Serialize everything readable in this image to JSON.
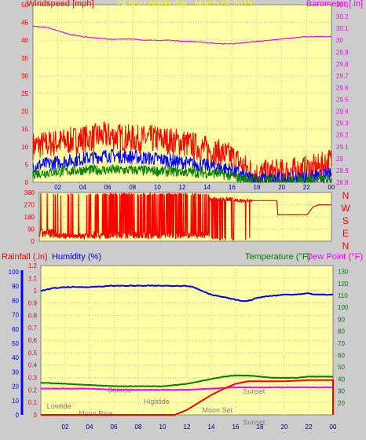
{
  "title": "24 hour graph day - March 02 2019",
  "colors": {
    "background": "#cccccc",
    "plot_bg": "#ffffa8",
    "wind": "#ff0000",
    "gust_avg": "#0000ff",
    "wind_low": "#008000",
    "barometer": "#ff00ff",
    "direction": "#ff0000",
    "humidity": "#0000ff",
    "temperature": "#008000",
    "dewpoint": "#ff00ff",
    "rain": "#ff0000",
    "title": "#ffff00",
    "event_text": "#808080"
  },
  "x_ticks": [
    "02",
    "04",
    "06",
    "08",
    "10",
    "12",
    "14",
    "16",
    "18",
    "20",
    "22",
    "00"
  ],
  "chart_data": [
    {
      "id": "wind_baro",
      "type": "line",
      "title": "24 hour graph day - March 02 2019",
      "left_axis_label": "Windspeed [mph]",
      "right_axis_label": "Barometer [.in]",
      "ylim_left": [
        0,
        50
      ],
      "ylim_right": [
        28.8,
        30.3
      ],
      "left_ticks": [
        "0",
        "5",
        "10",
        "15",
        "20",
        "25",
        "30",
        "35",
        "40",
        "45",
        "50"
      ],
      "right_ticks": [
        "28.8",
        "28.9",
        "29",
        "29.1",
        "29.2",
        "29.3",
        "29.4",
        "29.5",
        "29.6",
        "29.7",
        "29.8",
        "29.9",
        "30",
        "30.1",
        "30.2",
        "30.3"
      ],
      "xlim_hours": [
        0,
        24
      ],
      "series": [
        {
          "kind": "wind_gust",
          "color": "#ff0000",
          "anchors": [
            [
              0,
              9
            ],
            [
              2,
              10
            ],
            [
              4,
              11
            ],
            [
              6,
              12
            ],
            [
              8,
              11
            ],
            [
              10,
              11
            ],
            [
              12,
              10
            ],
            [
              14,
              8
            ],
            [
              16,
              6
            ],
            [
              17,
              3
            ],
            [
              18,
              1
            ],
            [
              21,
              2
            ],
            [
              23,
              3
            ],
            [
              24,
              5
            ]
          ],
          "noise": 4
        },
        {
          "kind": "wind_avg",
          "color": "#0000ff",
          "anchors": [
            [
              0,
              4
            ],
            [
              2,
              5
            ],
            [
              4,
              6
            ],
            [
              6,
              7
            ],
            [
              8,
              6.5
            ],
            [
              10,
              6
            ],
            [
              12,
              5
            ],
            [
              14,
              4
            ],
            [
              16,
              3
            ],
            [
              17,
              1
            ],
            [
              18,
              0.3
            ],
            [
              21,
              0.5
            ],
            [
              22.5,
              1
            ],
            [
              24,
              1.5
            ]
          ],
          "noise": 2
        },
        {
          "kind": "wind_low",
          "color": "#008000",
          "anchors": [
            [
              0,
              2
            ],
            [
              4,
              3
            ],
            [
              8,
              3
            ],
            [
              12,
              2.5
            ],
            [
              15,
              2
            ],
            [
              17,
              0.5
            ],
            [
              18,
              0
            ],
            [
              24,
              0.3
            ]
          ],
          "noise": 1.5
        },
        {
          "kind": "barometer",
          "color": "#ff00ff",
          "values": [
            [
              0,
              30.12
            ],
            [
              1,
              30.11
            ],
            [
              2,
              30.08
            ],
            [
              3,
              30.05
            ],
            [
              4,
              30.03
            ],
            [
              5,
              30.02
            ],
            [
              6,
              30.01
            ],
            [
              7,
              30.01
            ],
            [
              8,
              30.01
            ],
            [
              9,
              30.0
            ],
            [
              10,
              30.0
            ],
            [
              11,
              30.0
            ],
            [
              12,
              29.99
            ],
            [
              13,
              29.99
            ],
            [
              14,
              29.98
            ],
            [
              15,
              29.97
            ],
            [
              16,
              29.97
            ],
            [
              17,
              29.98
            ],
            [
              18,
              29.99
            ],
            [
              19,
              30.0
            ],
            [
              20,
              30.01
            ],
            [
              21,
              30.02
            ],
            [
              22,
              30.03
            ],
            [
              23,
              30.03
            ],
            [
              24,
              30.03
            ]
          ]
        }
      ]
    },
    {
      "id": "direction",
      "type": "line",
      "ylim": [
        0,
        360
      ],
      "left_ticks": [
        "0",
        "90",
        "180",
        "270",
        "360"
      ],
      "right_labels": [
        "N",
        "W",
        "S",
        "E",
        "N"
      ],
      "series": [
        {
          "kind": "direction",
          "color": "#ff0000",
          "segments": [
            {
              "from": 0,
              "to": 1.5,
              "base": 60,
              "noise": 35,
              "spikes": 0.04
            },
            {
              "from": 1.5,
              "to": 4,
              "base": 40,
              "noise": 20,
              "spikes": 0.06
            },
            {
              "from": 4,
              "to": 14,
              "base": 45,
              "noise": 25,
              "spikes": 0.35
            },
            {
              "from": 14,
              "to": 16,
              "base": 310,
              "noise": 15,
              "spikes": 0.25
            },
            {
              "from": 16,
              "to": 17.5,
              "base": 300,
              "noise": 10,
              "spikes": 0.02
            }
          ],
          "tail": [
            [
              17.5,
              300
            ],
            [
              19.5,
              300
            ],
            [
              19.6,
              195
            ],
            [
              22,
              195
            ],
            [
              22.5,
              255
            ],
            [
              23,
              270
            ],
            [
              24,
              268
            ]
          ]
        }
      ]
    },
    {
      "id": "hum_temp_rain",
      "type": "line",
      "rain_label": "Rainfall (.in)",
      "humidity_label": "Humidity (%)",
      "temperature_label": "Temperature (°F)",
      "dewpoint_label": "Dew Point (°F)",
      "ylim_rain": [
        0,
        1.2
      ],
      "ylim_humidity": [
        0,
        120
      ],
      "ylim_temp": [
        10,
        135
      ],
      "rain_ticks": [
        "0",
        "0.1",
        "0.2",
        "0.3",
        "0.4",
        "0.5",
        "0.6",
        "0.7",
        "0.8",
        "0.9",
        "1",
        "1.1",
        "1.2"
      ],
      "humidity_ticks": [
        "0",
        "10",
        "20",
        "30",
        "40",
        "50",
        "60",
        "70",
        "80",
        "90",
        "100"
      ],
      "temp_ticks": [
        "20",
        "30",
        "40",
        "50",
        "60",
        "70",
        "80",
        "90",
        "100",
        "110",
        "120",
        "130"
      ],
      "series": [
        {
          "name": "Humidity (%)",
          "kind": "humidity",
          "color": "#0000ff",
          "values": [
            [
              0,
              98
            ],
            [
              1,
              100
            ],
            [
              2,
              101
            ],
            [
              4,
              101
            ],
            [
              6,
              102
            ],
            [
              8,
              102
            ],
            [
              10,
              102
            ],
            [
              12,
              102
            ],
            [
              12.5,
              101
            ],
            [
              13,
              99
            ],
            [
              13.5,
              97
            ],
            [
              14,
              95
            ],
            [
              15,
              93
            ],
            [
              16,
              91
            ],
            [
              16.5,
              90
            ],
            [
              17,
              90
            ],
            [
              18,
              93
            ],
            [
              19,
              94
            ],
            [
              20,
              95
            ],
            [
              21,
              95
            ],
            [
              22,
              96
            ],
            [
              22.5,
              95
            ],
            [
              24,
              95
            ]
          ]
        },
        {
          "name": "Temperature (°F)",
          "kind": "temperature",
          "color": "#008000",
          "values": [
            [
              0,
              37
            ],
            [
              2,
              36
            ],
            [
              4,
              35
            ],
            [
              6,
              34
            ],
            [
              8,
              34
            ],
            [
              10,
              34
            ],
            [
              11,
              35
            ],
            [
              12,
              36
            ],
            [
              13,
              38
            ],
            [
              14,
              40
            ],
            [
              15,
              42
            ],
            [
              16,
              43
            ],
            [
              17,
              43
            ],
            [
              18,
              42
            ],
            [
              19,
              41
            ],
            [
              20,
              41
            ],
            [
              21,
              41
            ],
            [
              22,
              42
            ],
            [
              23,
              42
            ],
            [
              24,
              42
            ]
          ]
        },
        {
          "name": "Dew Point (°F)",
          "kind": "dewpoint",
          "color": "#ff00ff",
          "values": [
            [
              0,
              32
            ],
            [
              2,
              32
            ],
            [
              4,
              32
            ],
            [
              6,
              31
            ],
            [
              8,
              31
            ],
            [
              10,
              31
            ],
            [
              12,
              31
            ],
            [
              14,
              32
            ],
            [
              16,
              33
            ],
            [
              18,
              33
            ],
            [
              20,
              33
            ],
            [
              22,
              33
            ],
            [
              24,
              33
            ]
          ]
        },
        {
          "name": "Rainfall (.in)",
          "kind": "rain",
          "color": "#ff0000",
          "values": [
            [
              0,
              0
            ],
            [
              9,
              0
            ],
            [
              11,
              0
            ],
            [
              11.5,
              0.02
            ],
            [
              12,
              0.04
            ],
            [
              13,
              0.1
            ],
            [
              14,
              0.16
            ],
            [
              15,
              0.21
            ],
            [
              16,
              0.25
            ],
            [
              17,
              0.27
            ],
            [
              20,
              0.27
            ],
            [
              22,
              0.28
            ],
            [
              23.5,
              0.28
            ],
            [
              24,
              0.28
            ],
            [
              24,
              0
            ]
          ]
        }
      ],
      "events": [
        {
          "label": "Lowtide",
          "hour": 1.5,
          "level": 0.05
        },
        {
          "label": "Hightide",
          "hour": 9.5,
          "level": 0.09
        },
        {
          "label": "Sunrise",
          "hour": 6.5,
          "level": 0.18
        },
        {
          "label": "Moon Rise",
          "hour": 4.5,
          "level": -0.01
        },
        {
          "label": "Moon Set",
          "hour": 14.5,
          "level": 0.02
        },
        {
          "label": "Sunset",
          "hour": 17.5,
          "level": 0.17
        },
        {
          "label": "Sunset",
          "hour": 17.5,
          "level": -0.08
        }
      ]
    }
  ]
}
